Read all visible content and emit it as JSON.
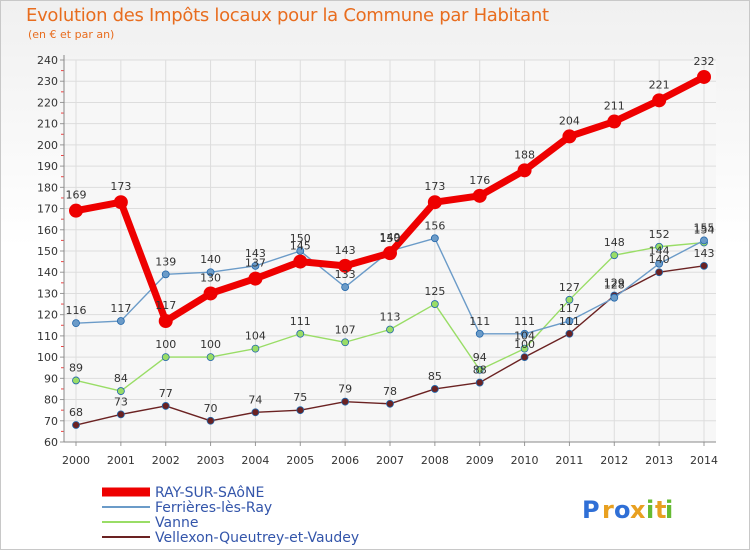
{
  "chart_data": {
    "type": "line",
    "title": "Evolution des Impôts locaux pour la Commune par Habitant",
    "subtitle": "(en € et par an)",
    "xlabel": "",
    "ylabel": "",
    "ylim": [
      60,
      240
    ],
    "ytick_step": 10,
    "grid": true,
    "legend_position": "bottom-left",
    "x": [
      "2000",
      "2001",
      "2002",
      "2003",
      "2004",
      "2005",
      "2006",
      "2007",
      "2008",
      "2009",
      "2010",
      "2011",
      "2012",
      "2013",
      "2014"
    ],
    "series": [
      {
        "name": "RAY-SUR-SAôNE",
        "color": "#ee0000",
        "values": [
          169,
          173,
          117,
          130,
          137,
          145,
          143,
          149,
          173,
          176,
          188,
          204,
          211,
          221,
          232
        ],
        "labels": [
          "169",
          "173",
          "117",
          "130",
          "137",
          "145",
          "143",
          "149",
          "173",
          "176",
          "188",
          "204",
          "211",
          "221",
          "232"
        ]
      },
      {
        "name": "Ferrières-lès-Ray",
        "color": "#6b9bc8",
        "values": [
          116,
          117,
          139,
          140,
          143,
          150,
          133,
          150,
          156,
          111,
          111,
          117,
          128,
          144,
          155
        ],
        "labels": [
          "116",
          "117",
          "139",
          "140",
          "143",
          "150",
          "133",
          "150",
          "156",
          "111",
          "111",
          "117",
          "128",
          "144",
          "155"
        ]
      },
      {
        "name": "Vanne",
        "color": "#99dd66",
        "values": [
          89,
          84,
          100,
          100,
          104,
          111,
          107,
          113,
          125,
          94,
          104,
          127,
          148,
          152,
          154
        ],
        "labels": [
          "89",
          "84",
          "100",
          "100",
          "104",
          "111",
          "107",
          "113",
          "125",
          "94",
          "104",
          "127",
          "148",
          "152",
          "154"
        ]
      },
      {
        "name": "Vellexon-Queutrey-et-Vaudey",
        "color": "#6b2222",
        "values": [
          68,
          73,
          77,
          70,
          74,
          75,
          79,
          78,
          85,
          88,
          100,
          111,
          129,
          140,
          143
        ],
        "labels": [
          "68",
          "73",
          "77",
          "70",
          "74",
          "75",
          "79",
          "78",
          "85",
          "88",
          "100",
          "111",
          "129",
          "140",
          "143"
        ]
      }
    ]
  },
  "logo": {
    "text": "Proxiti",
    "letters": [
      "P",
      "r",
      "o",
      "x",
      "i",
      "t",
      "i"
    ],
    "colors": [
      "#2f6fd6",
      "#e8a020",
      "#2f6fd6",
      "#e8a020",
      "#66bb33",
      "#e8a020",
      "#66bb33"
    ]
  }
}
